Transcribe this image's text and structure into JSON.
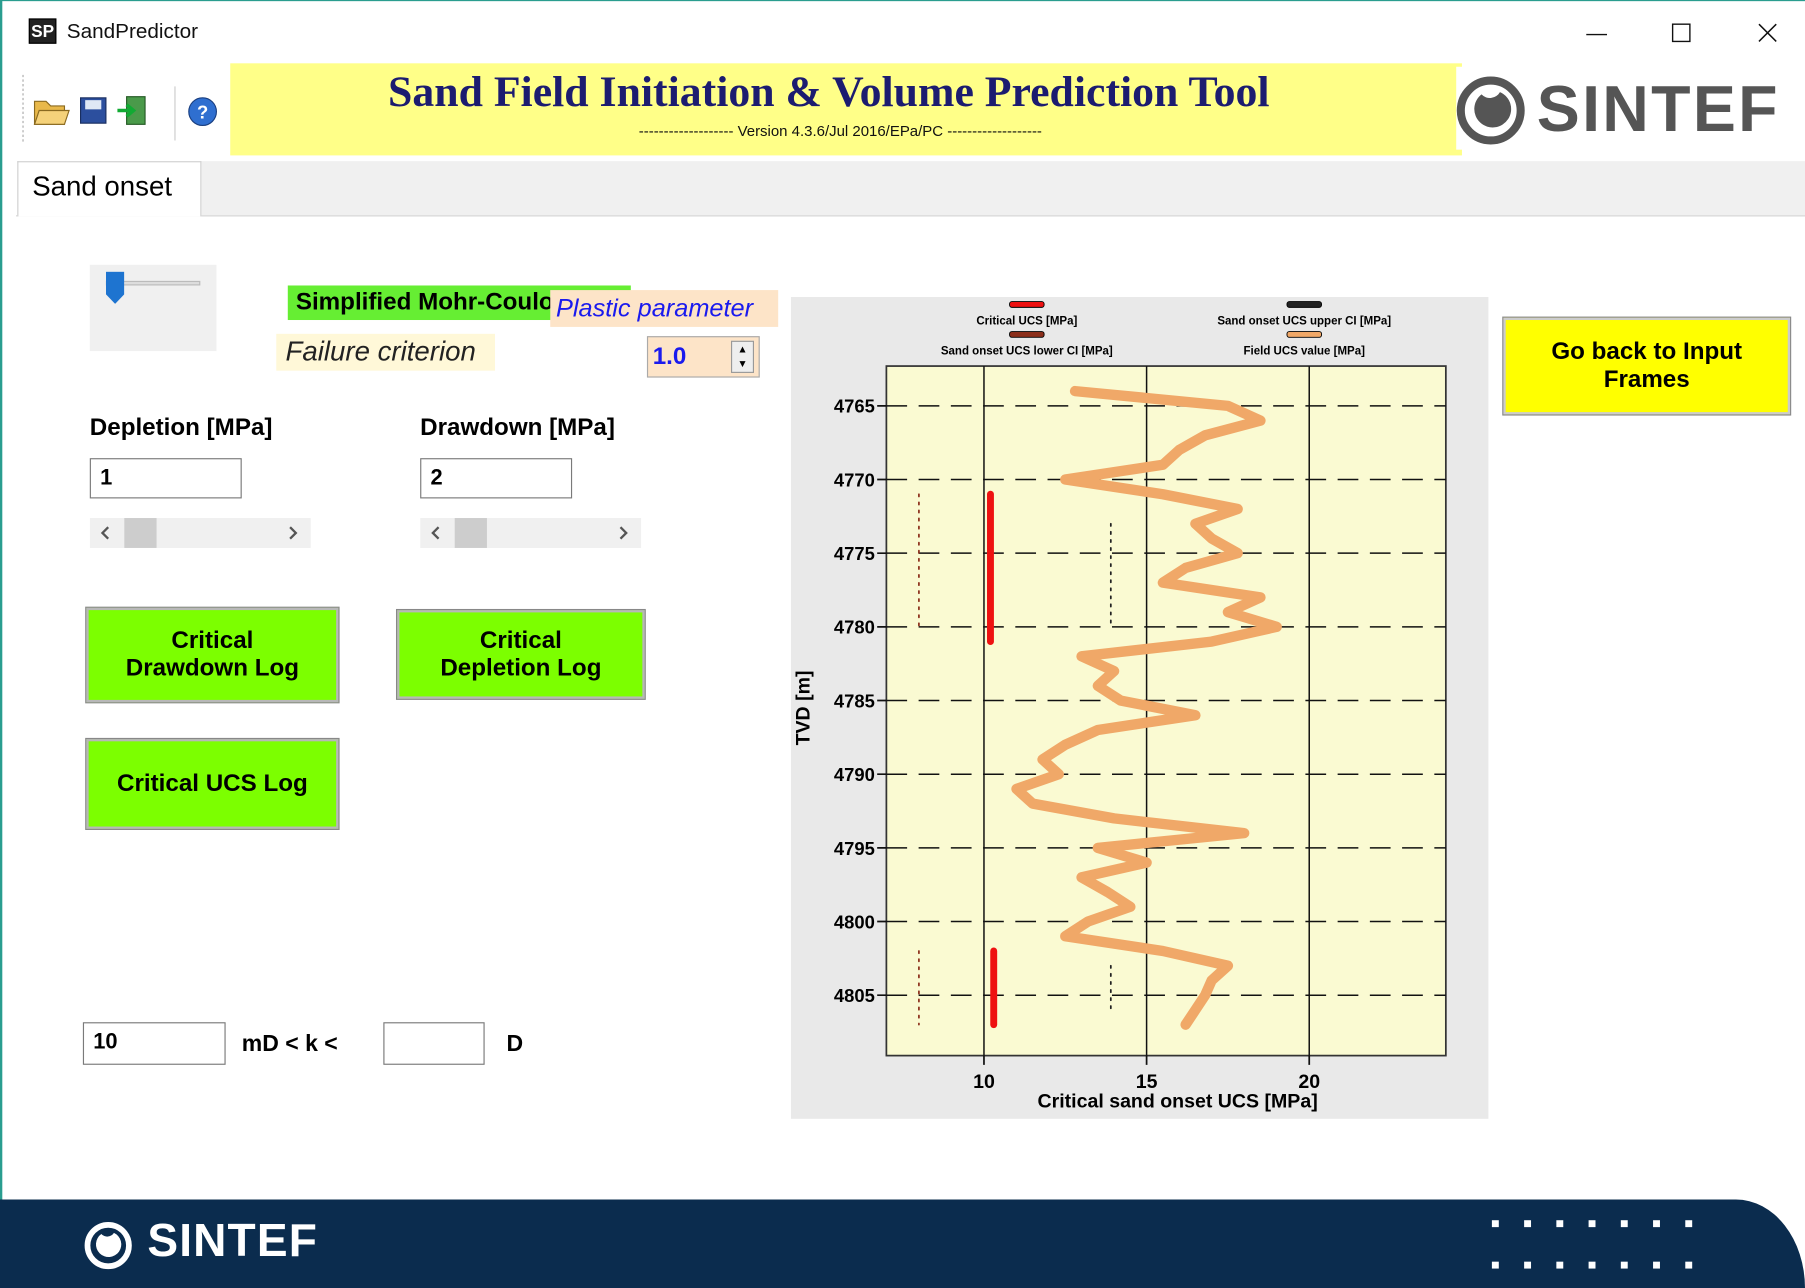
{
  "window": {
    "title": "SandPredictor",
    "icon": "SP"
  },
  "header": {
    "title": "Sand Field Initiation & Volume Prediction Tool",
    "version": "------------------- Version 4.3.6/Jul 2016/EPa/PC -------------------",
    "logo": "SINTEF"
  },
  "tabs": [
    "Sand onset"
  ],
  "controls": {
    "failure_criterion_button": "Simplified Mohr-Coulomb",
    "plastic_parameter_label": "Plastic parameter",
    "failure_criterion_label": "Failure criterion",
    "plastic_parameter_value": "1.0",
    "depletion_label": "Depletion [MPa]",
    "depletion_value": "1",
    "drawdown_label": "Drawdown [MPa]",
    "drawdown_value": "2",
    "buttons": [
      "Critical\nDrawdown Log",
      "Critical\nDepletion Log",
      "Critical UCS Log"
    ],
    "perm_min": "10",
    "perm_text": "mD < k <",
    "perm_unit": "D",
    "back_button": "Go back to Input\nFrames"
  },
  "footer": {
    "logo": "SINTEF"
  },
  "chart_data": {
    "type": "line",
    "xlabel": "Critical sand onset UCS [MPa]",
    "ylabel": "TVD [m]",
    "xlim": [
      7,
      24.2
    ],
    "xticks": [
      10,
      15,
      20
    ],
    "ylim": [
      4762.3,
      4809.1
    ],
    "yticks": [
      4765,
      4770,
      4775,
      4780,
      4785,
      4790,
      4795,
      4800,
      4805
    ],
    "y_inverted": true,
    "grid": true,
    "depth": [
      4764,
      4765,
      4766,
      4767,
      4768,
      4769,
      4770,
      4771,
      4772,
      4773,
      4774,
      4775,
      4776,
      4777,
      4778,
      4779,
      4780,
      4781,
      4782,
      4783,
      4784,
      4785,
      4786,
      4787,
      4788,
      4789,
      4790,
      4791,
      4792,
      4793,
      4794,
      4795,
      4796,
      4797,
      4798,
      4799,
      4800,
      4801,
      4802,
      4803,
      4804,
      4805,
      4806,
      4807
    ],
    "series": [
      {
        "name": "Critical UCS [MPa]",
        "color": "#ee1111",
        "style": "solid",
        "values": [
          null,
          null,
          null,
          null,
          null,
          null,
          null,
          10.2,
          10.2,
          10.2,
          10.2,
          10.2,
          10.2,
          10.2,
          10.2,
          10.2,
          10.2,
          10.2,
          null,
          null,
          null,
          null,
          null,
          null,
          null,
          null,
          null,
          null,
          null,
          10.2,
          null,
          null,
          null,
          null,
          null,
          null,
          null,
          null,
          10.3,
          10.3,
          10.3,
          10.3,
          10.3,
          10.3
        ]
      },
      {
        "name": "Sand onset UCS upper CI [MPa]",
        "color": "#222222",
        "style": "dotted",
        "values": [
          null,
          null,
          null,
          null,
          null,
          null,
          null,
          null,
          null,
          13.9,
          13.9,
          13.9,
          13.9,
          13.9,
          13.9,
          13.9,
          13.9,
          null,
          null,
          null,
          null,
          null,
          null,
          null,
          null,
          null,
          null,
          null,
          null,
          null,
          null,
          null,
          null,
          null,
          null,
          null,
          null,
          null,
          null,
          13.9,
          13.9,
          13.9,
          13.9,
          null
        ]
      },
      {
        "name": "Sand onset UCS lower CI [MPa]",
        "color": "#8b2e1a",
        "style": "dotted",
        "values": [
          null,
          null,
          null,
          null,
          null,
          null,
          null,
          8.0,
          8.0,
          8.0,
          8.0,
          8.0,
          8.0,
          8.0,
          8.0,
          8.0,
          8.0,
          null,
          null,
          null,
          null,
          null,
          null,
          null,
          null,
          null,
          null,
          null,
          null,
          7.8,
          null,
          null,
          null,
          null,
          null,
          null,
          null,
          null,
          8.0,
          8.0,
          8.0,
          8.0,
          8.0,
          8.0
        ]
      },
      {
        "name": "Field UCS value [MPa]",
        "color": "#f0a868",
        "style": "solid",
        "values": [
          12.8,
          17.5,
          18.5,
          16.8,
          16.0,
          15.5,
          12.5,
          15.5,
          17.8,
          16.5,
          17.0,
          17.8,
          16.2,
          15.5,
          18.5,
          17.5,
          19.0,
          17.0,
          13.0,
          14.0,
          13.5,
          14.2,
          16.5,
          13.5,
          12.5,
          11.8,
          12.3,
          11.0,
          11.5,
          14.0,
          18.0,
          13.5,
          15.0,
          13.0,
          13.8,
          14.5,
          13.2,
          12.5,
          15.5,
          17.5,
          17.0,
          16.8,
          16.5,
          16.2
        ]
      }
    ]
  }
}
